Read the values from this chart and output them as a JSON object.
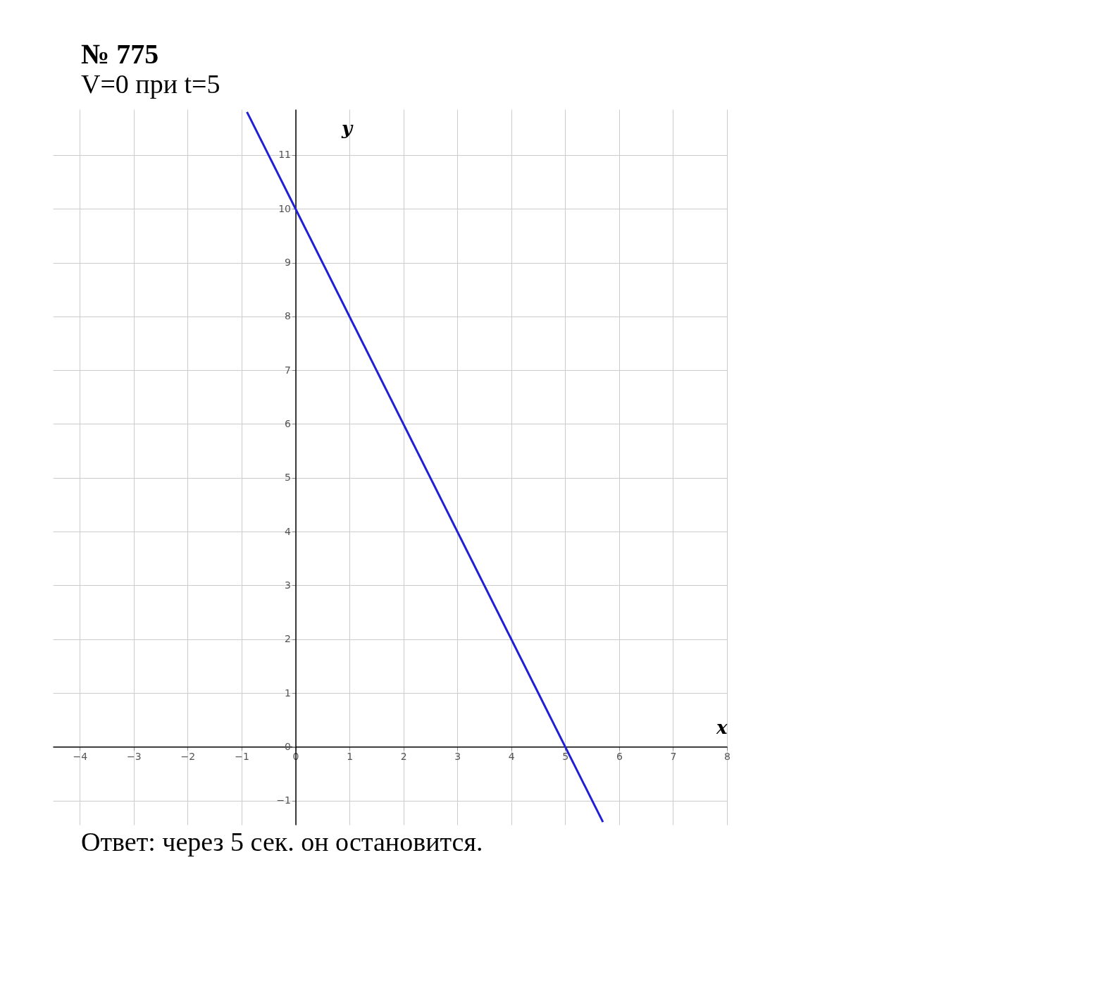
{
  "chart_data": {
    "type": "line",
    "title": "№ 775",
    "subtitle": "V=0  при t=5",
    "xlabel": "x",
    "ylabel": "y",
    "series": [
      {
        "color": "#1f1fd6",
        "x": [
          -0.9,
          5.7
        ],
        "values": [
          11.8,
          -1.4
        ]
      }
    ],
    "xlim": [
      -4.5,
      8
    ],
    "xticks": [
      -4,
      -3,
      -2,
      -1,
      0,
      1,
      2,
      3,
      4,
      5,
      6,
      7,
      8
    ],
    "ylim": [
      -1.45,
      11.85
    ],
    "yticks": [
      -1,
      0,
      1,
      2,
      3,
      4,
      5,
      6,
      7,
      8,
      9,
      10,
      11
    ],
    "grid": true,
    "marker": "none",
    "line_style": "solid",
    "annotations": [
      "Ответ: через 5 сек. он остановится."
    ]
  }
}
